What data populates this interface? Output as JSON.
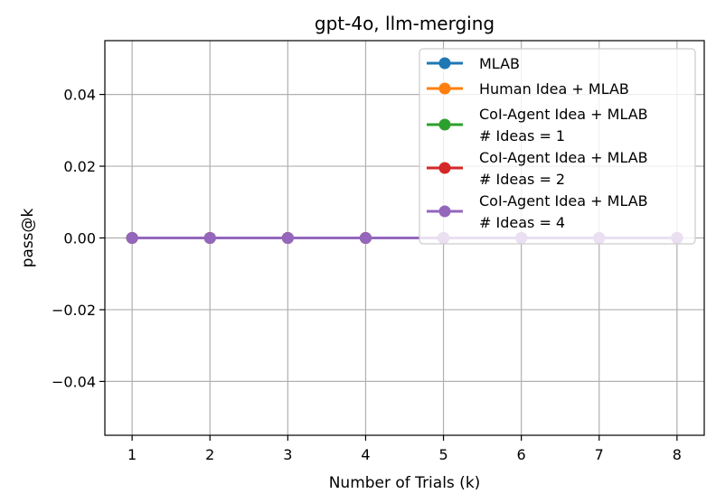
{
  "chart_data": {
    "type": "line",
    "title": "gpt-4o, llm-merging",
    "xlabel": "Number of Trials (k)",
    "ylabel": "pass@k",
    "x": [
      1,
      2,
      3,
      4,
      5,
      6,
      7,
      8
    ],
    "xlim": [
      0.65,
      8.35
    ],
    "ylim": [
      -0.055,
      0.055
    ],
    "xticks": [
      1,
      2,
      3,
      4,
      5,
      6,
      7,
      8
    ],
    "yticks": [
      -0.04,
      -0.02,
      0.0,
      0.02,
      0.04
    ],
    "ytick_labels": [
      "−0.04",
      "−0.02",
      "0.00",
      "0.02",
      "0.04"
    ],
    "grid": true,
    "legend_position": "upper-right",
    "series": [
      {
        "name": "MLAB",
        "color": "#1f77b4",
        "values": [
          0,
          0,
          0,
          0,
          0,
          0,
          0,
          0
        ]
      },
      {
        "name": "Human Idea + MLAB",
        "color": "#ff7f0e",
        "values": [
          0,
          0,
          0,
          0,
          0,
          0,
          0,
          0
        ]
      },
      {
        "name": "CoI-Agent Idea + MLAB\n# Ideas = 1",
        "color": "#2ca02c",
        "values": [
          0,
          0,
          0,
          0,
          0,
          0,
          0,
          0
        ]
      },
      {
        "name": "CoI-Agent Idea + MLAB\n# Ideas = 2",
        "color": "#d62728",
        "values": [
          0,
          0,
          0,
          0,
          0,
          0,
          0,
          0
        ]
      },
      {
        "name": "CoI-Agent Idea + MLAB\n# Ideas = 4",
        "color": "#9467bd",
        "values": [
          0,
          0,
          0,
          0,
          0,
          0,
          0,
          0
        ]
      }
    ]
  }
}
